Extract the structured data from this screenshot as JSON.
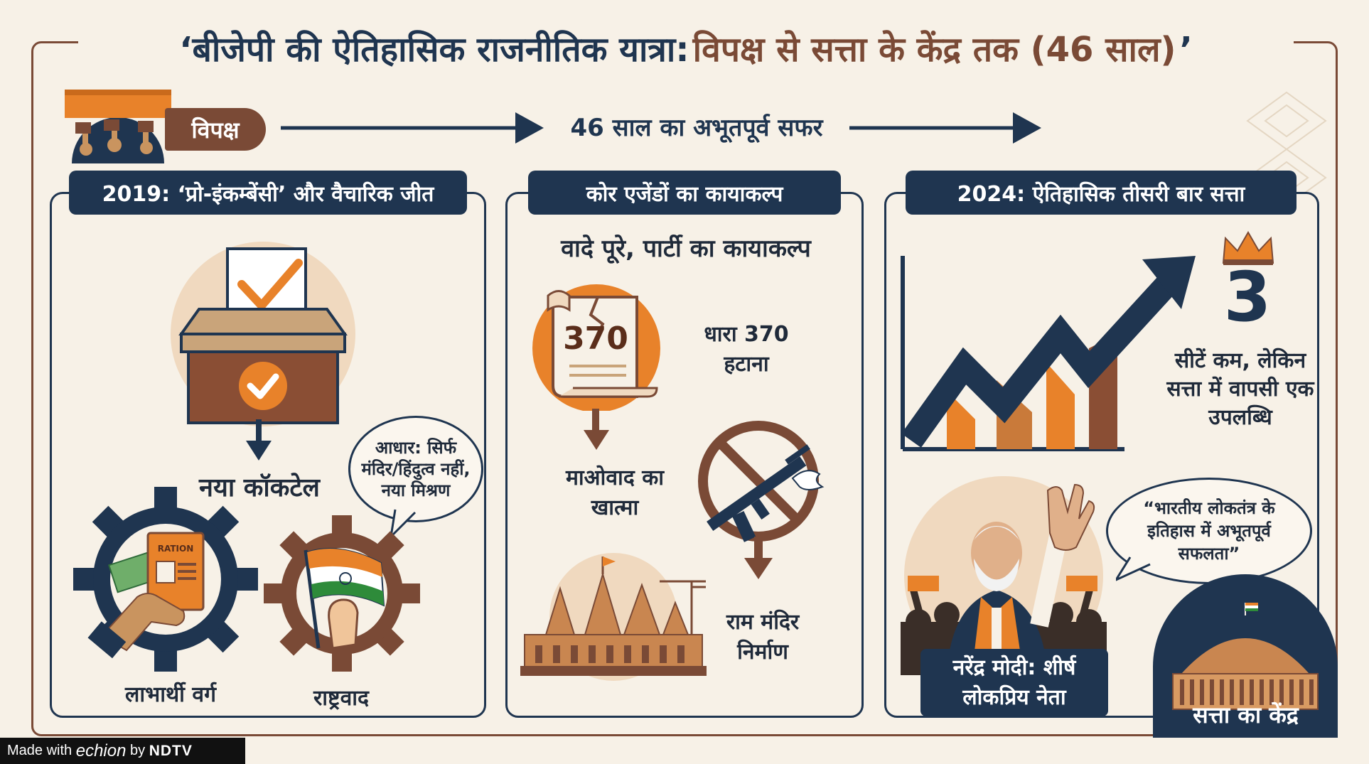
{
  "title": {
    "part1": "‘बीजेपी की ऐतिहासिक राजनीतिक यात्रा:",
    "part2": "विपक्ष से सत्ता के केंद्र तक (46 साल)",
    "part3": "’"
  },
  "top": {
    "opposition_label": "विपक्ष",
    "journey_label": "46 साल का अभूतपूर्व सफर"
  },
  "col1": {
    "heading": "2019: ‘प्रो-इंकम्बेंसी’ और वैचारिक जीत",
    "new_cocktail": "नया कॉकटेल",
    "bubble_text": "आधार: सिर्फ मंदिर/हिंदुत्व नहीं, नया मिश्रण",
    "ration_card_label": "RATION",
    "beneficiary_label": "लाभार्थी वर्ग",
    "nationalism_label": "राष्ट्रवाद"
  },
  "col2": {
    "heading": "कोर एजेंडों का कायाकल्प",
    "subheading": "वादे पूरे, पार्टी का कायाकल्प",
    "scroll_number": "370",
    "article370_label": "धारा 370 हटाना",
    "maoism_label": "माओवाद का खात्मा",
    "ram_mandir_label": "राम मंदिर निर्माण"
  },
  "col3": {
    "heading": "2024: ऐतिहासिक तीसरी बार सत्ता",
    "big_number": "3",
    "seats_text": "सीटें कम, लेकिन सत्ता में वापसी एक उपलब्धि",
    "quote": "“भारतीय लोकतंत्र के इतिहास में अभूतपूर्व सफलता”",
    "leader_label": "नरेंद्र मोदी: शीर्ष लोकप्रिय नेता",
    "power_center_label": "सत्ता का केंद्र"
  },
  "footer": {
    "made_with": "Made with",
    "echion": "echion",
    "by": "by",
    "brand": "NDTV"
  },
  "colors": {
    "navy": "#1f3550",
    "brown": "#7a4a36",
    "orange": "#e8822a",
    "cream": "#f7f1e7"
  }
}
